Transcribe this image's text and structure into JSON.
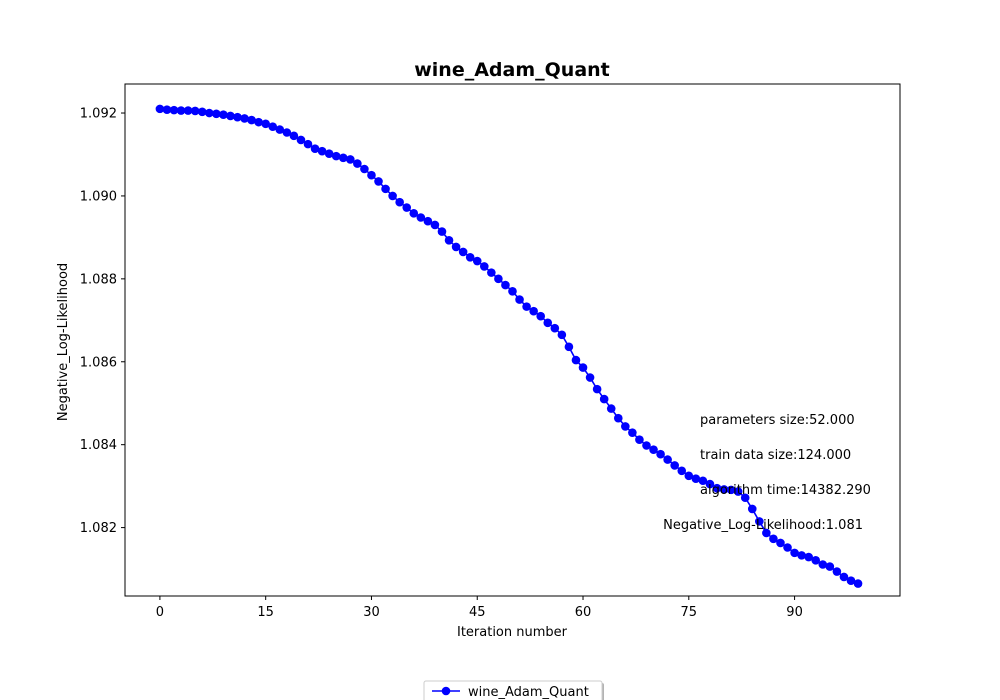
{
  "chart_data": {
    "type": "line",
    "title": "wine_Adam_Quant",
    "xlabel": "Iteration number",
    "ylabel": "Negative_Log-Likelihood",
    "xlim": [
      -4.95,
      104.95
    ],
    "ylim": [
      1.08035,
      1.0927
    ],
    "xticks": [
      0,
      15,
      30,
      45,
      60,
      75,
      90
    ],
    "yticks": [
      1.082,
      1.084,
      1.086,
      1.088,
      1.09,
      1.092
    ],
    "ytick_labels": [
      "1.082",
      "1.084",
      "1.086",
      "1.088",
      "1.090",
      "1.092"
    ],
    "grid": false,
    "legend": "bottom-center",
    "series": [
      {
        "name": "wine_Adam_Quant",
        "color": "#0000ff",
        "marker": "circle",
        "x": [
          0,
          1,
          2,
          3,
          4,
          5,
          6,
          7,
          8,
          9,
          10,
          11,
          12,
          13,
          14,
          15,
          16,
          17,
          18,
          19,
          20,
          21,
          22,
          23,
          24,
          25,
          26,
          27,
          28,
          29,
          30,
          31,
          32,
          33,
          34,
          35,
          36,
          37,
          38,
          39,
          40,
          41,
          42,
          43,
          44,
          45,
          46,
          47,
          48,
          49,
          50,
          51,
          52,
          53,
          54,
          55,
          56,
          57,
          58,
          59,
          60,
          61,
          62,
          63,
          64,
          65,
          66,
          67,
          68,
          69,
          70,
          71,
          72,
          73,
          74,
          75,
          76,
          77,
          78,
          79,
          80,
          81,
          82,
          83,
          84,
          85,
          86,
          87,
          88,
          89,
          90,
          91,
          92,
          93,
          94,
          95,
          96,
          97,
          98,
          99
        ],
        "values": [
          1.0921,
          1.09208,
          1.09207,
          1.09206,
          1.09206,
          1.09205,
          1.09203,
          1.092,
          1.09198,
          1.09196,
          1.09193,
          1.0919,
          1.09187,
          1.09183,
          1.09178,
          1.09174,
          1.09167,
          1.0916,
          1.09153,
          1.09145,
          1.09135,
          1.09125,
          1.09114,
          1.09108,
          1.09102,
          1.09096,
          1.09092,
          1.09088,
          1.09078,
          1.09065,
          1.0905,
          1.09035,
          1.09017,
          1.09,
          1.08985,
          1.08972,
          1.08958,
          1.08948,
          1.08939,
          1.0893,
          1.08914,
          1.08893,
          1.08877,
          1.08865,
          1.08852,
          1.08843,
          1.0883,
          1.08815,
          1.088,
          1.08785,
          1.0877,
          1.0875,
          1.08733,
          1.08722,
          1.0871,
          1.08694,
          1.08681,
          1.08665,
          1.08636,
          1.08604,
          1.08586,
          1.08562,
          1.08534,
          1.0851,
          1.08487,
          1.08464,
          1.08444,
          1.08429,
          1.08412,
          1.08398,
          1.08388,
          1.08377,
          1.08364,
          1.0835,
          1.08337,
          1.08325,
          1.08318,
          1.08313,
          1.08305,
          1.08295,
          1.08292,
          1.08291,
          1.08287,
          1.08272,
          1.08245,
          1.08215,
          1.08187,
          1.08173,
          1.08163,
          1.08152,
          1.08139,
          1.08133,
          1.08129,
          1.08121,
          1.08111,
          1.08106,
          1.08094,
          1.08081,
          1.08072,
          1.08065
        ]
      }
    ],
    "annotations": [
      {
        "text": "parameters size:52.000"
      },
      {
        "text": "train data size:124.000"
      },
      {
        "text": "algorithm time:14382.290"
      },
      {
        "text": "Negative_Log-Likelihood:1.081"
      }
    ]
  }
}
